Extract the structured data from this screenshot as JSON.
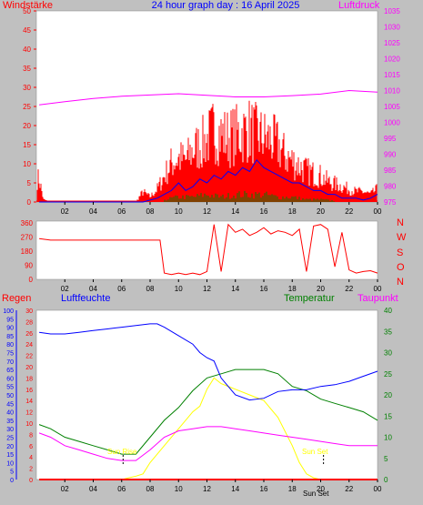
{
  "header": {
    "left_title": "Windstärke",
    "center_title": "24 hour graph day : 16 April 2025",
    "right_title": "Luftdruck"
  },
  "colors": {
    "background": "#c0c0c0",
    "plot_bg": "#ffffff",
    "wind": "#ff0000",
    "gust": "#ff0000",
    "wind_avg": "#0000ff",
    "wind_green": "#008000",
    "pressure": "#ff00ff",
    "direction": "#ff0000",
    "rain": "#ff0000",
    "humidity": "#0000ff",
    "temperature": "#008000",
    "dewpoint": "#ff00ff",
    "solar": "#ffff00",
    "sun_marker": "#ffff00",
    "title": "#0000ff"
  },
  "x_ticks": [
    "02",
    "04",
    "06",
    "08",
    "10",
    "12",
    "14",
    "16",
    "18",
    "20",
    "22",
    "00"
  ],
  "panel3": {
    "label_rain": "Regen",
    "label_humidity": "Luftfeuchte",
    "label_temperature": "Temperatur",
    "label_dewpoint": "Taupunkt",
    "sunrise_label": "Sun Rise",
    "sunset_label": "Sun Set",
    "sunset_tick": "Sun Set"
  },
  "chart_data": [
    {
      "type": "line",
      "panel": "wind_pressure",
      "ylabel": "Windstärke",
      "y2label": "Luftdruck",
      "ylim": [
        0,
        50
      ],
      "y2lim": [
        975,
        1035
      ],
      "y_ticks": [
        0,
        5,
        10,
        15,
        20,
        25,
        30,
        35,
        40,
        45,
        50
      ],
      "y2_ticks": [
        975,
        980,
        985,
        990,
        995,
        1000,
        1005,
        1010,
        1015,
        1020,
        1025,
        1030,
        1035
      ],
      "series": [
        {
          "name": "Windstärke",
          "x": [
            0.2,
            0.5,
            1,
            2,
            3,
            4,
            5,
            6,
            7,
            7.5,
            8,
            8.5,
            9,
            9.5,
            10,
            10.5,
            11,
            11.5,
            12,
            12.5,
            13,
            13.5,
            14,
            14.5,
            15,
            15.5,
            16,
            16.5,
            17,
            17.5,
            18,
            18.5,
            19,
            19.5,
            20,
            20.5,
            21,
            21.5,
            22,
            22.5,
            23,
            23.5,
            24
          ],
          "values": [
            9,
            1,
            0,
            0,
            0,
            0,
            0,
            0,
            0,
            4,
            2,
            5,
            10,
            15,
            17,
            16,
            20,
            22,
            24,
            28,
            26,
            25,
            26,
            27,
            28,
            26,
            25,
            24,
            22,
            18,
            16,
            14,
            12,
            11,
            10,
            8,
            7,
            6,
            5,
            4,
            4,
            3,
            5
          ]
        },
        {
          "name": "Wind avg",
          "x": [
            0.2,
            2,
            4,
            6,
            7.5,
            8,
            8.5,
            9,
            9.5,
            10,
            10.5,
            11,
            11.5,
            12,
            12.5,
            13,
            13.5,
            14,
            14.5,
            15,
            15.5,
            16,
            16.5,
            17,
            17.5,
            18,
            18.5,
            19,
            19.5,
            20,
            20.5,
            21,
            21.5,
            22,
            22.5,
            23,
            23.5,
            24
          ],
          "values": [
            0,
            0,
            0,
            0,
            0,
            0.5,
            1,
            2,
            3,
            5,
            3,
            4,
            6,
            5,
            7,
            6,
            8,
            7,
            9,
            8,
            11,
            9,
            8,
            7,
            6,
            5,
            5,
            4,
            3,
            3,
            2,
            2,
            1,
            1,
            1,
            0.5,
            1,
            2
          ]
        },
        {
          "name": "Wind green",
          "x": [
            9,
            10,
            11,
            12,
            13,
            14,
            15,
            16,
            17,
            18,
            19,
            20,
            21
          ],
          "values": [
            1,
            2,
            2,
            3,
            2,
            3,
            3,
            3,
            2,
            2,
            1,
            1,
            0.5
          ]
        },
        {
          "name": "Luftdruck",
          "x": [
            0.2,
            2,
            4,
            6,
            8,
            10,
            12,
            14,
            16,
            18,
            20,
            22,
            24
          ],
          "values": [
            1005.5,
            1006.5,
            1007.5,
            1008.2,
            1008.6,
            1009,
            1008.5,
            1008,
            1008,
            1008.4,
            1008.9,
            1010,
            1009.5
          ]
        }
      ]
    },
    {
      "type": "line",
      "panel": "wind_direction",
      "ylim": [
        0,
        360
      ],
      "y_ticks": [
        0,
        90,
        180,
        270,
        360
      ],
      "y2_labels": [
        "N",
        "W",
        "S",
        "O",
        "N"
      ],
      "series": [
        {
          "name": "Windrichtung",
          "x": [
            0.2,
            1,
            2,
            3,
            4,
            5,
            6,
            7,
            8,
            8.7,
            9,
            9.5,
            10,
            10.5,
            11,
            11.5,
            12,
            12.5,
            13,
            13.5,
            14,
            14.5,
            15,
            15.5,
            16,
            16.5,
            17,
            17.5,
            18,
            18.5,
            19,
            19.5,
            20,
            20.5,
            21,
            21.5,
            22,
            22.5,
            23,
            23.5,
            24
          ],
          "values": [
            260,
            250,
            250,
            250,
            250,
            250,
            250,
            250,
            250,
            250,
            40,
            30,
            40,
            30,
            40,
            30,
            50,
            350,
            50,
            350,
            300,
            320,
            280,
            300,
            330,
            290,
            310,
            300,
            280,
            320,
            50,
            340,
            350,
            320,
            80,
            300,
            60,
            40,
            50,
            55,
            40
          ]
        }
      ]
    },
    {
      "type": "line",
      "panel": "humidity_temperature",
      "y_left_outer_ticks": [
        0,
        5,
        10,
        15,
        20,
        25,
        30,
        35,
        40,
        45,
        50,
        55,
        60,
        65,
        70,
        75,
        80,
        85,
        90,
        95,
        100
      ],
      "y_left_inner_ticks": [
        0,
        2,
        4,
        6,
        8,
        10,
        12,
        14,
        16,
        18,
        20,
        22,
        24,
        26,
        28,
        30
      ],
      "y_right_ticks": [
        0,
        5,
        10,
        15,
        20,
        25,
        30,
        35,
        40
      ],
      "series": [
        {
          "name": "Luftfeuchte",
          "x": [
            0.2,
            1,
            2,
            3,
            4,
            5,
            6,
            7,
            8,
            8.5,
            9,
            10,
            11,
            11.5,
            12,
            12.5,
            13,
            13.5,
            14,
            15,
            16,
            17,
            18,
            19,
            20,
            21,
            22,
            23,
            24
          ],
          "values": [
            87,
            86,
            86,
            87,
            88,
            89,
            90,
            91,
            92,
            92,
            90,
            85,
            80,
            75,
            72,
            70,
            60,
            55,
            50,
            47,
            48,
            52,
            53,
            53,
            55,
            56,
            58,
            61,
            64
          ]
        },
        {
          "name": "Temperatur",
          "x": [
            0.2,
            1,
            2,
            3,
            4,
            5,
            6,
            7,
            8,
            9,
            10,
            11,
            12,
            13,
            14,
            15,
            16,
            17,
            18,
            19,
            20,
            21,
            22,
            23,
            24
          ],
          "values": [
            13,
            12,
            10,
            9,
            8,
            7,
            6,
            6,
            10,
            14,
            17,
            21,
            24,
            25,
            26,
            26,
            26,
            25,
            22,
            21,
            19,
            18,
            17,
            16,
            14
          ]
        },
        {
          "name": "Taupunkt",
          "x": [
            0.2,
            1,
            2,
            3,
            4,
            5,
            6,
            7,
            8,
            9,
            10,
            11,
            12,
            13,
            14,
            15,
            16,
            17,
            18,
            19,
            20,
            21,
            22,
            23,
            24
          ],
          "values": [
            11,
            10,
            8,
            7,
            6,
            5,
            4.5,
            4.5,
            7,
            10,
            11.5,
            12,
            12.5,
            12.5,
            12,
            11.5,
            11,
            10.5,
            10,
            9.5,
            9,
            8.5,
            8,
            8,
            8
          ]
        },
        {
          "name": "Solar",
          "x": [
            0.2,
            4,
            6,
            6.5,
            7,
            7.5,
            8,
            9,
            10,
            11,
            11.5,
            12,
            12.5,
            13,
            14,
            15,
            16,
            17,
            18,
            18.5,
            19,
            19.5,
            20,
            24
          ],
          "values": [
            0,
            0,
            0,
            0.3,
            0.6,
            1,
            3,
            6,
            9,
            12,
            13,
            16,
            18,
            17,
            16,
            15,
            14,
            11,
            6,
            3,
            1,
            0.3,
            0,
            0
          ]
        },
        {
          "name": "Regen",
          "x": [
            0.2,
            24
          ],
          "values": [
            0,
            0
          ]
        }
      ]
    }
  ]
}
